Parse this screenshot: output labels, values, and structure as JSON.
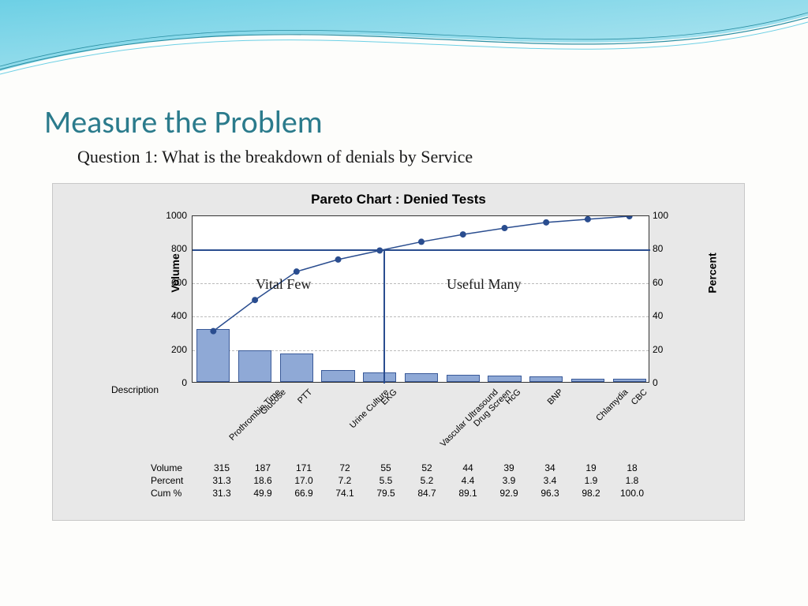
{
  "slide": {
    "title": "Measure the Problem",
    "subtitle": "Question 1:  What is the breakdown of denials by Service",
    "title_color": "#2b7b8c",
    "title_fontsize": 40,
    "subtitle_fontsize": 22,
    "wave_colors": [
      "#6dd0e5",
      "#b9e8f2",
      "#2a8fa3",
      "#ffffff"
    ]
  },
  "chart": {
    "type": "pareto",
    "title": "Pareto Chart :  Denied Tests",
    "title_fontsize": 17,
    "title_fontweight": "bold",
    "panel_bg": "#e8e8e8",
    "plot_bg": "#ffffff",
    "grid_color": "#bbbbbb",
    "border_color": "#333333",
    "bar_fill": "#8fa9d6",
    "bar_border": "#3a5a99",
    "line_color": "#2a4d8f",
    "marker_color": "#2a4d8f",
    "marker_size": 4,
    "line_width": 1.5,
    "bar_width_ratio": 0.8,
    "y_left": {
      "label": "Volume",
      "min": 0,
      "max": 1000,
      "step": 200
    },
    "y_right": {
      "label": "Percent",
      "min": 0,
      "max": 100,
      "step": 20
    },
    "reference_line_percent": 80,
    "annotations": {
      "vital_few": "Vital Few",
      "useful_many": "Useful Many"
    },
    "description_label": "Description",
    "categories": [
      "Prothrombin Time",
      "Glucose",
      "PTT",
      "Urine Culture",
      "EKG",
      "Vascular Ultrasound",
      "Drug Screen",
      "HcG",
      "BNP",
      "Chlamydia",
      "CBC"
    ],
    "volume": [
      315,
      187,
      171,
      72,
      55,
      52,
      44,
      39,
      34,
      19,
      18
    ],
    "percent": [
      31.3,
      18.6,
      17.0,
      7.2,
      5.5,
      5.2,
      4.4,
      3.9,
      3.4,
      1.9,
      1.8
    ],
    "cum_pct": [
      31.3,
      49.9,
      66.9,
      74.1,
      79.5,
      84.7,
      89.1,
      92.9,
      96.3,
      98.2,
      100.0
    ],
    "table_rows": [
      "Volume",
      "Percent",
      "Cum %"
    ]
  }
}
